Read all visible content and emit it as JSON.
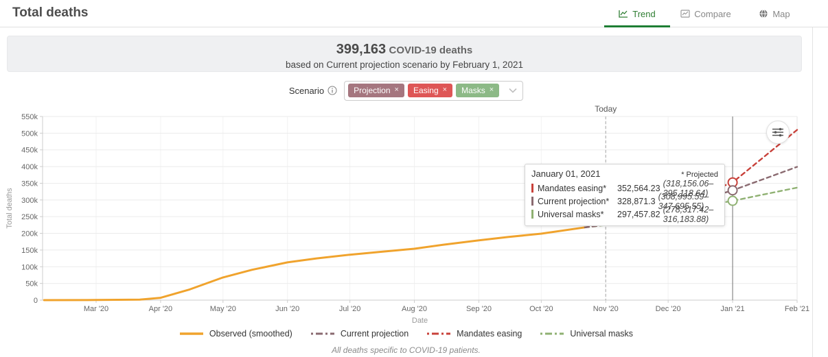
{
  "header": {
    "title": "Total deaths",
    "tabs": [
      {
        "label": "Trend",
        "active": true
      },
      {
        "label": "Compare",
        "active": false
      },
      {
        "label": "Map",
        "active": false
      }
    ]
  },
  "banner": {
    "count": "399,163",
    "count_suffix": "COVID-19 deaths",
    "subtitle": "based on Current projection scenario by February 1, 2021"
  },
  "scenario": {
    "label": "Scenario",
    "remove_glyph": "×",
    "tags": [
      {
        "label": "Projection",
        "color": "#a5767f"
      },
      {
        "label": "Easing",
        "color": "#de5656"
      },
      {
        "label": "Masks",
        "color": "#8cb986"
      }
    ]
  },
  "tooltip": {
    "date": "January 01, 2021",
    "note": "* Projected",
    "rows": [
      {
        "label": "Mandates easing*",
        "value": "352,564.23",
        "ci": "(318,156.06–395,118.64)",
        "color": "#c8413a"
      },
      {
        "label": "Current projection*",
        "value": "328,871.3",
        "ci": "(308,995.59–347,695.55)",
        "color": "#8a6a70"
      },
      {
        "label": "Universal masks*",
        "value": "297,457.82",
        "ci": "(278,317.42–316,183.88)",
        "color": "#8fb172"
      }
    ]
  },
  "legend": [
    {
      "label": "Observed (smoothed)",
      "color": "#f0a32d",
      "style": "solid"
    },
    {
      "label": "Current projection",
      "color": "#8a6a70",
      "style": "dashed"
    },
    {
      "label": "Mandates easing",
      "color": "#c8413a",
      "style": "dashed"
    },
    {
      "label": "Universal masks",
      "color": "#8fb172",
      "style": "dashed"
    }
  ],
  "footnote": "All deaths specific to COVID-19 patients.",
  "chart_data": {
    "type": "line",
    "xlabel": "Date",
    "ylabel": "Total deaths",
    "ylim_k": [
      0,
      550
    ],
    "y_tick_step_k": 50,
    "y_ticks": [
      "0",
      "50k",
      "100k",
      "150k",
      "200k",
      "250k",
      "300k",
      "350k",
      "400k",
      "450k",
      "500k",
      "550k"
    ],
    "x_ticks": [
      "Mar '20",
      "Apr '20",
      "May '20",
      "Jun '20",
      "Jul '20",
      "Aug '20",
      "Sep '20",
      "Oct '20",
      "Nov '20",
      "Dec '20",
      "Jan '21",
      "Feb '21"
    ],
    "x_tick_dates": [
      "2020-03-01",
      "2020-04-01",
      "2020-05-01",
      "2020-06-01",
      "2020-07-01",
      "2020-08-01",
      "2020-09-01",
      "2020-10-01",
      "2020-11-01",
      "2020-12-01",
      "2021-01-01",
      "2021-02-01"
    ],
    "grid": true,
    "legend_position": "bottom",
    "series": [
      {
        "name": "Observed (smoothed)",
        "style": "solid",
        "color": "#f0a32d",
        "points": [
          [
            "2020-02-05",
            0
          ],
          [
            "2020-03-01",
            0.4
          ],
          [
            "2020-03-22",
            1.5
          ],
          [
            "2020-04-01",
            7
          ],
          [
            "2020-04-15",
            32
          ],
          [
            "2020-05-01",
            68
          ],
          [
            "2020-05-15",
            91
          ],
          [
            "2020-06-01",
            113
          ],
          [
            "2020-06-15",
            125
          ],
          [
            "2020-07-01",
            136
          ],
          [
            "2020-07-15",
            144
          ],
          [
            "2020-08-01",
            154
          ],
          [
            "2020-08-15",
            166
          ],
          [
            "2020-09-01",
            179
          ],
          [
            "2020-09-15",
            189
          ],
          [
            "2020-10-01",
            199
          ],
          [
            "2020-10-22",
            218
          ]
        ]
      },
      {
        "name": "Current projection",
        "style": "dashed",
        "color": "#8a6a70",
        "points": [
          [
            "2020-10-22",
            218
          ],
          [
            "2020-11-01",
            226
          ],
          [
            "2020-12-01",
            272
          ],
          [
            "2021-01-01",
            328.87
          ],
          [
            "2021-02-01",
            399.16
          ]
        ]
      },
      {
        "name": "Mandates easing",
        "style": "dashed",
        "color": "#c8413a",
        "points": [
          [
            "2020-10-22",
            218
          ],
          [
            "2020-11-01",
            226
          ],
          [
            "2020-12-01",
            278
          ],
          [
            "2021-01-01",
            352.56
          ],
          [
            "2021-02-01",
            510
          ]
        ]
      },
      {
        "name": "Universal masks",
        "style": "dashed",
        "color": "#8fb172",
        "points": [
          [
            "2020-10-22",
            218
          ],
          [
            "2020-11-01",
            225
          ],
          [
            "2020-12-01",
            264
          ],
          [
            "2021-01-01",
            297.46
          ],
          [
            "2021-02-01",
            337
          ]
        ]
      }
    ],
    "markers": [
      {
        "x": "2021-01-01",
        "y_k": 352.56,
        "color": "#c8413a"
      },
      {
        "x": "2021-01-01",
        "y_k": 328.87,
        "color": "#8a6a70"
      },
      {
        "x": "2021-01-01",
        "y_k": 297.46,
        "color": "#8fb172"
      }
    ],
    "vlines": [
      {
        "x": "2020-11-01",
        "style": "dashed",
        "label": "Today"
      },
      {
        "x": "2021-01-01",
        "style": "solid",
        "label": ""
      }
    ]
  }
}
